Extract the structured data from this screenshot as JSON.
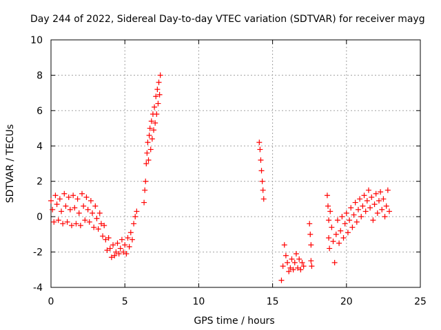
{
  "chart_data": {
    "type": "scatter",
    "title": "Day 244 of 2022, Sidereal Day-to-day VTEC variation (SDTVAR) for receiver mayg",
    "xlabel": "GPS time / hours",
    "ylabel": "SDTVAR / TECUs",
    "xlim": [
      0,
      25
    ],
    "ylim": [
      -4,
      10
    ],
    "grid": true,
    "x_ticks": [
      "0",
      "5",
      "10",
      "15",
      "20",
      "25"
    ],
    "y_ticks": [
      "-4",
      "-2",
      "0",
      "2",
      "4",
      "6",
      "8",
      "10"
    ],
    "marker": "+",
    "marker_color": "#ff0000",
    "series": [
      {
        "name": "SDTVAR",
        "points": [
          [
            0.0,
            0.9
          ],
          [
            0.1,
            0.4
          ],
          [
            0.2,
            -0.3
          ],
          [
            0.3,
            1.2
          ],
          [
            0.4,
            0.7
          ],
          [
            0.5,
            -0.2
          ],
          [
            0.6,
            1.0
          ],
          [
            0.7,
            0.3
          ],
          [
            0.8,
            -0.4
          ],
          [
            0.9,
            1.3
          ],
          [
            1.0,
            0.6
          ],
          [
            1.1,
            -0.3
          ],
          [
            1.2,
            1.1
          ],
          [
            1.3,
            0.4
          ],
          [
            1.4,
            -0.5
          ],
          [
            1.5,
            1.2
          ],
          [
            1.6,
            0.5
          ],
          [
            1.7,
            -0.4
          ],
          [
            1.8,
            1.0
          ],
          [
            1.9,
            0.2
          ],
          [
            2.0,
            -0.5
          ],
          [
            2.1,
            1.3
          ],
          [
            2.2,
            0.6
          ],
          [
            2.3,
            -0.2
          ],
          [
            2.4,
            1.1
          ],
          [
            2.5,
            0.4
          ],
          [
            2.6,
            -0.3
          ],
          [
            2.7,
            0.9
          ],
          [
            2.8,
            0.2
          ],
          [
            2.9,
            -0.6
          ],
          [
            3.0,
            0.6
          ],
          [
            3.1,
            -0.1
          ],
          [
            3.2,
            -0.7
          ],
          [
            3.3,
            0.2
          ],
          [
            3.4,
            -0.4
          ],
          [
            3.5,
            -1.1
          ],
          [
            3.6,
            -0.5
          ],
          [
            3.7,
            -1.3
          ],
          [
            3.8,
            -1.9
          ],
          [
            3.9,
            -1.2
          ],
          [
            4.0,
            -1.8
          ],
          [
            4.1,
            -2.3
          ],
          [
            4.2,
            -1.6
          ],
          [
            4.3,
            -2.2
          ],
          [
            4.4,
            -2.0
          ],
          [
            4.5,
            -1.5
          ],
          [
            4.6,
            -2.1
          ],
          [
            4.7,
            -1.8
          ],
          [
            4.8,
            -1.3
          ],
          [
            4.9,
            -2.0
          ],
          [
            5.0,
            -1.6
          ],
          [
            5.1,
            -2.1
          ],
          [
            5.2,
            -1.2
          ],
          [
            5.3,
            -1.7
          ],
          [
            5.4,
            -0.9
          ],
          [
            5.5,
            -1.3
          ],
          [
            5.6,
            -0.4
          ],
          [
            5.7,
            0.0
          ],
          [
            5.8,
            0.3
          ],
          [
            6.3,
            0.8
          ],
          [
            6.35,
            1.5
          ],
          [
            6.4,
            2.0
          ],
          [
            6.45,
            3.0
          ],
          [
            6.5,
            3.6
          ],
          [
            6.55,
            4.2
          ],
          [
            6.6,
            3.2
          ],
          [
            6.65,
            4.6
          ],
          [
            6.7,
            5.0
          ],
          [
            6.75,
            3.8
          ],
          [
            6.8,
            5.4
          ],
          [
            6.85,
            4.4
          ],
          [
            6.9,
            5.8
          ],
          [
            6.95,
            4.9
          ],
          [
            7.0,
            6.2
          ],
          [
            7.05,
            5.3
          ],
          [
            7.1,
            6.8
          ],
          [
            7.15,
            5.8
          ],
          [
            7.2,
            7.2
          ],
          [
            7.25,
            6.4
          ],
          [
            7.3,
            7.6
          ],
          [
            7.35,
            6.9
          ],
          [
            7.4,
            8.0
          ],
          [
            14.1,
            4.2
          ],
          [
            14.15,
            3.8
          ],
          [
            14.2,
            3.2
          ],
          [
            14.25,
            2.6
          ],
          [
            14.3,
            2.0
          ],
          [
            14.35,
            1.5
          ],
          [
            14.4,
            1.0
          ],
          [
            15.6,
            -3.6
          ],
          [
            15.7,
            -2.8
          ],
          [
            15.8,
            -1.6
          ],
          [
            15.9,
            -2.2
          ],
          [
            16.0,
            -2.6
          ],
          [
            16.1,
            -3.1
          ],
          [
            16.2,
            -2.9
          ],
          [
            16.3,
            -2.4
          ],
          [
            16.4,
            -3.0
          ],
          [
            16.5,
            -2.6
          ],
          [
            16.6,
            -2.1
          ],
          [
            16.7,
            -2.9
          ],
          [
            16.8,
            -2.4
          ],
          [
            16.9,
            -3.0
          ],
          [
            17.0,
            -2.6
          ],
          [
            17.1,
            -2.8
          ],
          [
            17.5,
            -0.4
          ],
          [
            17.55,
            -1.0
          ],
          [
            17.6,
            -1.6
          ],
          [
            17.6,
            -2.5
          ],
          [
            17.65,
            -2.8
          ],
          [
            18.7,
            1.2
          ],
          [
            18.75,
            0.6
          ],
          [
            18.8,
            -0.2
          ],
          [
            18.8,
            -1.2
          ],
          [
            18.85,
            -1.8
          ],
          [
            18.9,
            0.3
          ],
          [
            19.0,
            -0.6
          ],
          [
            19.1,
            -1.4
          ],
          [
            19.2,
            -2.6
          ],
          [
            19.3,
            -1.0
          ],
          [
            19.4,
            -0.2
          ],
          [
            19.5,
            -1.5
          ],
          [
            19.6,
            -0.8
          ],
          [
            19.7,
            0.0
          ],
          [
            19.8,
            -1.2
          ],
          [
            19.9,
            -0.4
          ],
          [
            20.0,
            0.2
          ],
          [
            20.1,
            -0.9
          ],
          [
            20.2,
            -0.2
          ],
          [
            20.3,
            0.5
          ],
          [
            20.4,
            -0.6
          ],
          [
            20.5,
            0.1
          ],
          [
            20.6,
            0.8
          ],
          [
            20.7,
            -0.3
          ],
          [
            20.8,
            0.4
          ],
          [
            20.9,
            1.0
          ],
          [
            21.0,
            0.0
          ],
          [
            21.1,
            0.6
          ],
          [
            21.2,
            1.2
          ],
          [
            21.3,
            0.3
          ],
          [
            21.4,
            0.9
          ],
          [
            21.5,
            1.5
          ],
          [
            21.6,
            0.5
          ],
          [
            21.7,
            1.1
          ],
          [
            21.8,
            -0.2
          ],
          [
            21.9,
            0.7
          ],
          [
            22.0,
            1.3
          ],
          [
            22.1,
            0.2
          ],
          [
            22.2,
            0.9
          ],
          [
            22.3,
            1.4
          ],
          [
            22.4,
            0.4
          ],
          [
            22.5,
            1.0
          ],
          [
            22.6,
            0.0
          ],
          [
            22.7,
            0.6
          ],
          [
            22.8,
            1.5
          ],
          [
            22.9,
            0.3
          ]
        ]
      }
    ]
  }
}
